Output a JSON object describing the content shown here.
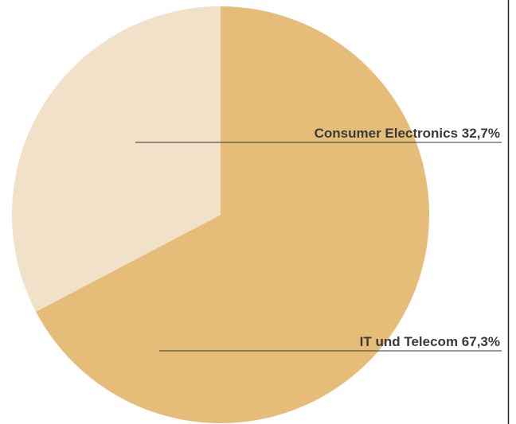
{
  "chart_data": {
    "type": "pie",
    "categories": [
      "IT und Telecom",
      "Consumer Electronics"
    ],
    "values": [
      67.3,
      32.7
    ],
    "value_labels": [
      "67,3%",
      "32,7%"
    ],
    "colors": [
      "#e5bd78",
      "#f1e1c9"
    ]
  }
}
